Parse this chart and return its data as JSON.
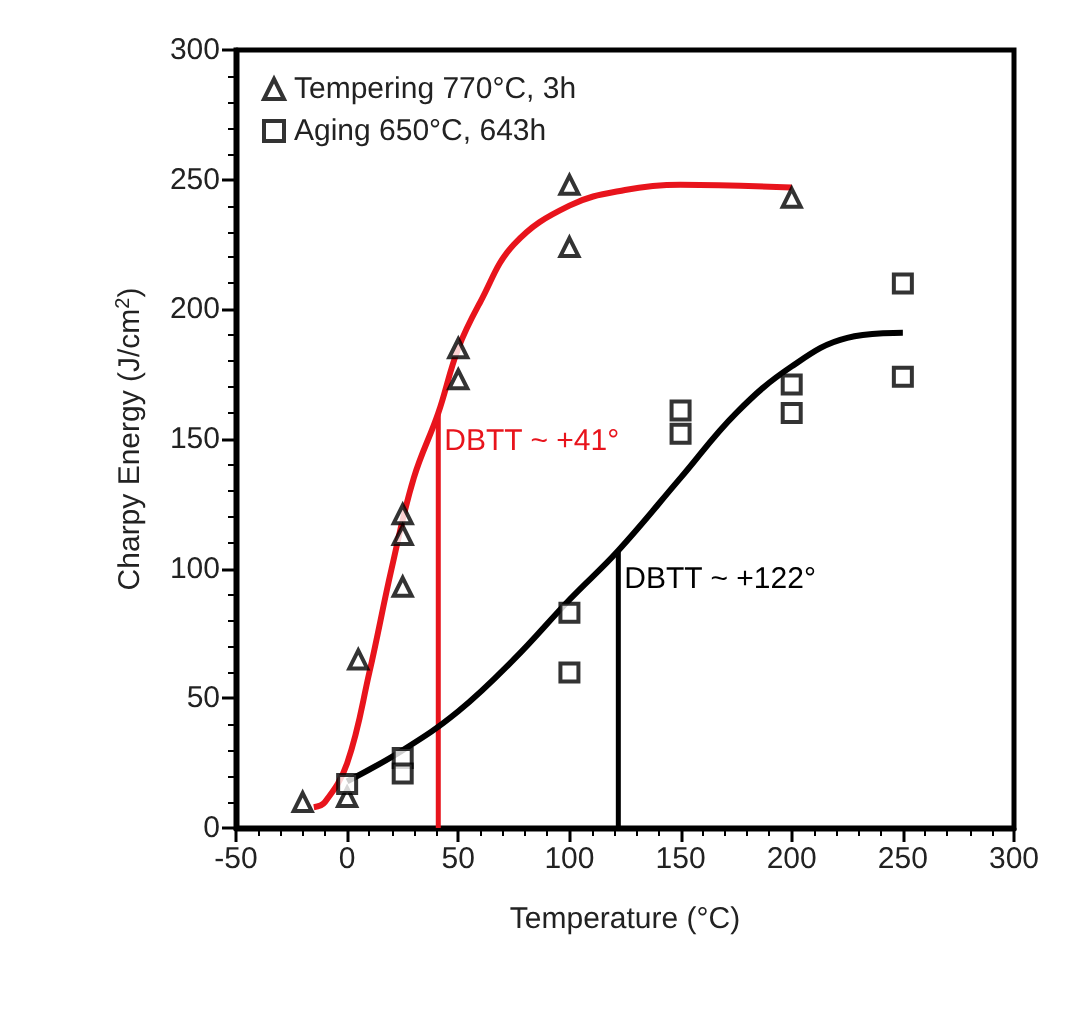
{
  "chart_data": {
    "type": "scatter",
    "xlabel": "Temperature (°C)",
    "ylabel": "Charpy Energy (J/cm$^{2}$)",
    "xlim": [
      -50,
      300
    ],
    "xticks": [
      -50,
      0,
      50,
      100,
      150,
      200,
      250,
      300
    ],
    "ylim": [
      0,
      300
    ],
    "yticks": [
      0,
      50,
      100,
      150,
      200,
      250,
      300
    ],
    "grid": false,
    "legend": "top left",
    "series": [
      {
        "name": "Tempering 770°C, 3h",
        "color": "#000000",
        "marker": "triangle",
        "x": [
          -20,
          0,
          5,
          25,
          25,
          25,
          50,
          50,
          100,
          100,
          200
        ],
        "values": [
          10,
          12,
          65,
          121,
          113,
          93,
          185,
          173,
          248,
          224,
          243
        ]
      },
      {
        "name": "Aging 650°C, 643h",
        "color": "#000000",
        "marker": "square",
        "x": [
          0,
          25,
          25,
          100,
          100,
          150,
          150,
          200,
          200,
          250,
          250
        ],
        "values": [
          17,
          27,
          21,
          83,
          60,
          161,
          152,
          171,
          160,
          210,
          174
        ]
      },
      {
        "type": "line",
        "color": "#e8141c",
        "marker": "none",
        "x": [
          -15,
          -10,
          0,
          10,
          20,
          30,
          41,
          50,
          60,
          75,
          100,
          125,
          150,
          200
        ],
        "values": [
          8,
          10,
          25,
          60,
          100,
          135,
          160,
          185,
          203,
          225,
          240,
          246,
          248,
          247
        ]
      },
      {
        "type": "line",
        "color": "#000000",
        "marker": "none",
        "x": [
          0,
          25,
          50,
          75,
          100,
          122,
          150,
          175,
          200,
          225,
          250
        ],
        "values": [
          18,
          30,
          45,
          65,
          88,
          107,
          135,
          160,
          178,
          189,
          191
        ]
      }
    ],
    "ref_lines": [
      {
        "axis": "x",
        "value": 41,
        "label": "DBTT ~ +41°",
        "color": "#e8141c"
      },
      {
        "axis": "x",
        "value": 122,
        "label": "DBTT ~ +122°",
        "color": "#000000"
      }
    ]
  }
}
